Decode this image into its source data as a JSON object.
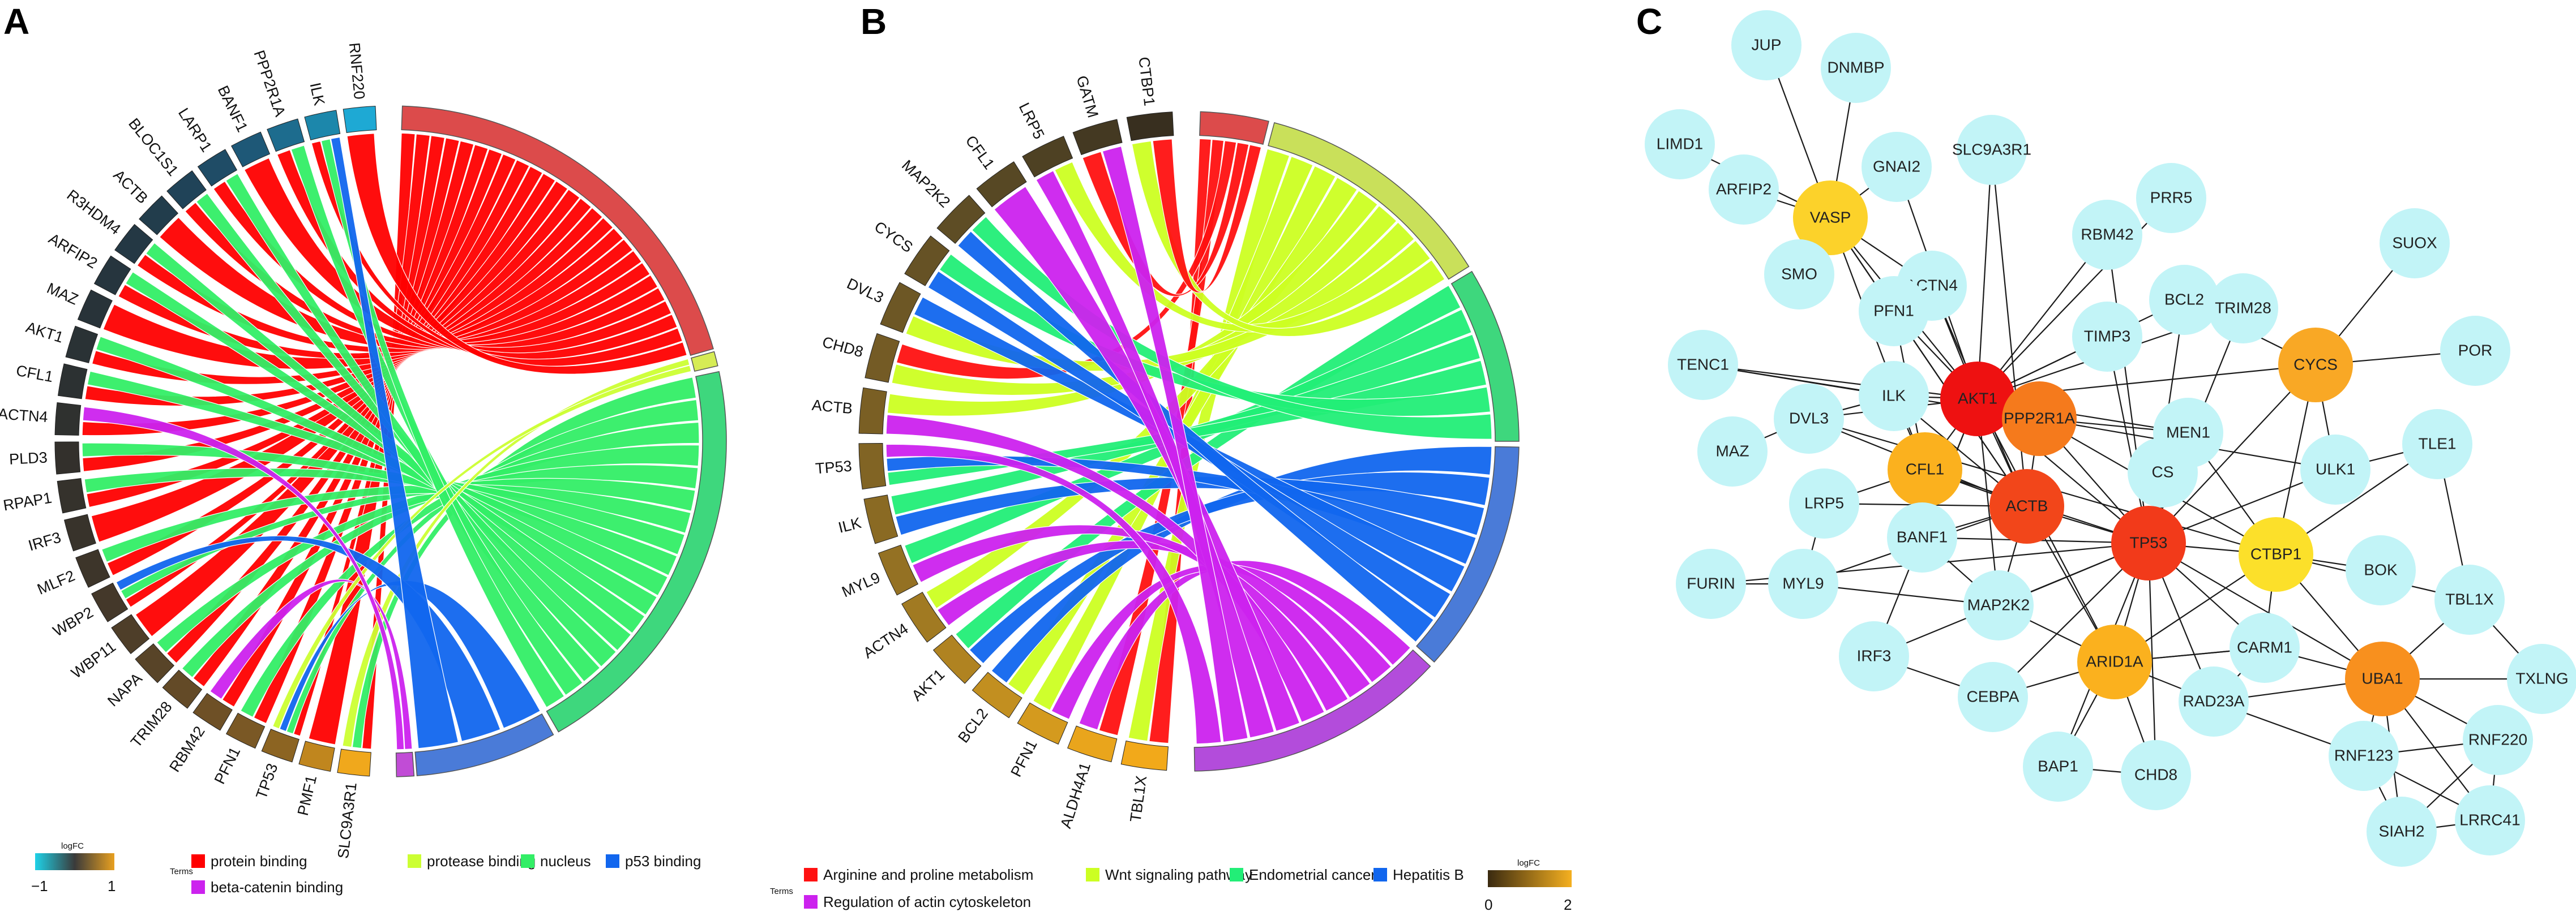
{
  "panels": [
    {
      "letter": "A",
      "genes": [
        "SLC9A3R1",
        "PMF1",
        "TP53",
        "PFN1",
        "RBM42",
        "TRIM28",
        "NAPA",
        "WBP11",
        "WBP2",
        "MLF2",
        "IRF3",
        "RPAP1",
        "PLD3",
        "ACTN4",
        "CFL1",
        "AKT1",
        "MAZ",
        "ARFIP2",
        "R3HDM4",
        "ACTB",
        "BLOC1S1",
        "LARP1",
        "BANF1",
        "PPP2R1A",
        "ILK",
        "RNF220"
      ],
      "gene_colors": [
        "#f0a81c",
        "#c0861e",
        "#8c6422",
        "#7a5825",
        "#6e5026",
        "#634a27",
        "#584428",
        "#4e3e29",
        "#44382a",
        "#3d352a",
        "#38332b",
        "#35322c",
        "#33302c",
        "#2f312f",
        "#2c3132",
        "#2a3235",
        "#283339",
        "#26353e",
        "#243844",
        "#223d4c",
        "#204358",
        "#1f4c66",
        "#1e5877",
        "#1d6c8e",
        "#1c87ab",
        "#1ea9d4"
      ],
      "terms": [
        {
          "name": "protein binding",
          "color": "#ff0000",
          "arc_color": "#dc4b4b"
        },
        {
          "name": "protease binding",
          "color": "#ccff33",
          "arc_color": "#d6ec55"
        },
        {
          "name": "nucleus",
          "color": "#33ee66",
          "arc_color": "#3ed77d"
        },
        {
          "name": "p53 binding",
          "color": "#1166ee",
          "arc_color": "#4a7bd8"
        },
        {
          "name": "beta-catenin binding",
          "color": "#cc22ee",
          "arc_color": "#c14cd6"
        }
      ],
      "legend": {
        "title": "logFC",
        "min_label": "−1",
        "max_label": "1",
        "terms_title": "Terms",
        "gradient": [
          "#1ed2e8",
          "#3a3a3a",
          "#e8a020"
        ]
      }
    },
    {
      "letter": "B",
      "genes": [
        "TBL1X",
        "ALDH4A1",
        "PFN1",
        "BCL2",
        "AKT1",
        "ACTN4",
        "MYL9",
        "ILK",
        "TP53",
        "ACTB",
        "CHD8",
        "DVL3",
        "CYCS",
        "MAP2K2",
        "CFL1",
        "LRP5",
        "GATM",
        "CTBP1"
      ],
      "gene_colors": [
        "#f2a91a",
        "#e9a51c",
        "#d49a1e",
        "#c28f20",
        "#b08321",
        "#a17a22",
        "#947123",
        "#8a6a23",
        "#816424",
        "#7a5f24",
        "#745b25",
        "#6d5725",
        "#665225",
        "#5e4d25",
        "#574824",
        "#4e4123",
        "#443922",
        "#382f1f"
      ],
      "terms": [
        {
          "name": "Arginine and proline metabolism",
          "color": "#ff1111",
          "arc_color": "#dc4b4b"
        },
        {
          "name": "Wnt signaling pathway",
          "color": "#ccff22",
          "arc_color": "#c9e05a"
        },
        {
          "name": "Endometrial cancer",
          "color": "#22ee77",
          "arc_color": "#3ed77d"
        },
        {
          "name": "Hepatitis B",
          "color": "#1166ee",
          "arc_color": "#4a7bd8"
        },
        {
          "name": "Regulation of actin cytoskeleton",
          "color": "#cc22ee",
          "arc_color": "#b34cdb"
        }
      ],
      "legend": {
        "title": "logFC",
        "min_label": "0",
        "max_label": "2",
        "terms_title": "Terms",
        "gradient": [
          "#3a2a10",
          "#f5b020"
        ]
      }
    },
    {
      "letter": "C",
      "nodes": [
        {
          "id": "JUP",
          "color": "#c2f4f7"
        },
        {
          "id": "DNMBP",
          "color": "#c2f4f7"
        },
        {
          "id": "LIMD1",
          "color": "#c2f4f7"
        },
        {
          "id": "ARFIP2",
          "color": "#c2f4f7"
        },
        {
          "id": "VASP",
          "color": "#fcd22a"
        },
        {
          "id": "GNAI2",
          "color": "#c2f4f7"
        },
        {
          "id": "SLC9A3R1",
          "color": "#c2f4f7"
        },
        {
          "id": "PRR5",
          "color": "#c2f4f7"
        },
        {
          "id": "RBM42",
          "color": "#c2f4f7"
        },
        {
          "id": "SMO",
          "color": "#c2f4f7"
        },
        {
          "id": "ACTN4",
          "color": "#c2f4f7"
        },
        {
          "id": "PFN1",
          "color": "#c2f4f7"
        },
        {
          "id": "BCL2",
          "color": "#c2f4f7"
        },
        {
          "id": "TRIM28",
          "color": "#c2f4f7"
        },
        {
          "id": "SUOX",
          "color": "#c2f4f7"
        },
        {
          "id": "TIMP3",
          "color": "#c2f4f7"
        },
        {
          "id": "CYCS",
          "color": "#f9a825"
        },
        {
          "id": "POR",
          "color": "#c2f4f7"
        },
        {
          "id": "TENC1",
          "color": "#c2f4f7"
        },
        {
          "id": "AKT1",
          "color": "#ee1111"
        },
        {
          "id": "PPP2R1A",
          "color": "#f57a1c"
        },
        {
          "id": "ILK",
          "color": "#c2f4f7"
        },
        {
          "id": "DVL3",
          "color": "#c2f4f7"
        },
        {
          "id": "MEN1",
          "color": "#c2f4f7"
        },
        {
          "id": "MAZ",
          "color": "#c2f4f7"
        },
        {
          "id": "CFL1",
          "color": "#fbb11e"
        },
        {
          "id": "ULK1",
          "color": "#c2f4f7"
        },
        {
          "id": "TLE1",
          "color": "#c2f4f7"
        },
        {
          "id": "CS",
          "color": "#c2f4f7"
        },
        {
          "id": "LRP5",
          "color": "#c2f4f7"
        },
        {
          "id": "ACTB",
          "color": "#f2461a"
        },
        {
          "id": "BANF1",
          "color": "#c2f4f7"
        },
        {
          "id": "TP53",
          "color": "#f23a1a"
        },
        {
          "id": "CTBP1",
          "color": "#fce02a"
        },
        {
          "id": "BOK",
          "color": "#c2f4f7"
        },
        {
          "id": "FURIN",
          "color": "#c2f4f7"
        },
        {
          "id": "MYL9",
          "color": "#c2f4f7"
        },
        {
          "id": "MAP2K2",
          "color": "#c2f4f7"
        },
        {
          "id": "TBL1X",
          "color": "#c2f4f7"
        },
        {
          "id": "IRF3",
          "color": "#c2f4f7"
        },
        {
          "id": "CARM1",
          "color": "#c2f4f7"
        },
        {
          "id": "ARID1A",
          "color": "#fbb11e"
        },
        {
          "id": "UBA1",
          "color": "#f8901e"
        },
        {
          "id": "TXLNG",
          "color": "#c2f4f7"
        },
        {
          "id": "CEBPA",
          "color": "#c2f4f7"
        },
        {
          "id": "RAD23A",
          "color": "#c2f4f7"
        },
        {
          "id": "RNF220",
          "color": "#c2f4f7"
        },
        {
          "id": "RNF123",
          "color": "#c2f4f7"
        },
        {
          "id": "BAP1",
          "color": "#c2f4f7"
        },
        {
          "id": "CHD8",
          "color": "#c2f4f7"
        },
        {
          "id": "SIAH2",
          "color": "#c2f4f7"
        },
        {
          "id": "LRRC41",
          "color": "#c2f4f7"
        }
      ],
      "edges": [
        [
          "JUP",
          "VASP"
        ],
        [
          "DNMBP",
          "VASP"
        ],
        [
          "LIMD1",
          "VASP"
        ],
        [
          "ARFIP2",
          "VASP"
        ],
        [
          "GNAI2",
          "VASP"
        ],
        [
          "SMO",
          "VASP"
        ],
        [
          "VASP",
          "ACTN4"
        ],
        [
          "VASP",
          "PFN1"
        ],
        [
          "VASP",
          "AKT1"
        ],
        [
          "VASP",
          "CFL1"
        ],
        [
          "VASP",
          "ACTB"
        ],
        [
          "GNAI2",
          "AKT1"
        ],
        [
          "SLC9A3R1",
          "AKT1"
        ],
        [
          "SLC9A3R1",
          "ACTB"
        ],
        [
          "PRR5",
          "AKT1"
        ],
        [
          "RBM42",
          "AKT1"
        ],
        [
          "RBM42",
          "TP53"
        ],
        [
          "ACTN4",
          "AKT1"
        ],
        [
          "ACTN4",
          "ACTB"
        ],
        [
          "PFN1",
          "ACTB"
        ],
        [
          "PFN1",
          "AKT1"
        ],
        [
          "PFN1",
          "CFL1"
        ],
        [
          "BCL2",
          "AKT1"
        ],
        [
          "BCL2",
          "TP53"
        ],
        [
          "BCL2",
          "CYCS"
        ],
        [
          "TRIM28",
          "TP53"
        ],
        [
          "TRIM28",
          "AKT1"
        ],
        [
          "SUOX",
          "CYCS"
        ],
        [
          "POR",
          "CYCS"
        ],
        [
          "TIMP3",
          "AKT1"
        ],
        [
          "TIMP3",
          "TP53"
        ],
        [
          "CYCS",
          "AKT1"
        ],
        [
          "CYCS",
          "TP53"
        ],
        [
          "CYCS",
          "ULK1"
        ],
        [
          "CYCS",
          "CTBP1"
        ],
        [
          "TENC1",
          "AKT1"
        ],
        [
          "TENC1",
          "PPP2R1A"
        ],
        [
          "AKT1",
          "PPP2R1A"
        ],
        [
          "AKT1",
          "ACTB"
        ],
        [
          "AKT1",
          "TP53"
        ],
        [
          "AKT1",
          "CFL1"
        ],
        [
          "AKT1",
          "ILK"
        ],
        [
          "AKT1",
          "DVL3"
        ],
        [
          "AKT1",
          "MAP2K2"
        ],
        [
          "AKT1",
          "BANF1"
        ],
        [
          "AKT1",
          "ARID1A"
        ],
        [
          "AKT1",
          "IRF3"
        ],
        [
          "AKT1",
          "MEN1"
        ],
        [
          "PPP2R1A",
          "TP53"
        ],
        [
          "PPP2R1A",
          "ACTB"
        ],
        [
          "PPP2R1A",
          "CTBP1"
        ],
        [
          "PPP2R1A",
          "MEN1"
        ],
        [
          "PPP2R1A",
          "ULK1"
        ],
        [
          "ILK",
          "ACTB"
        ],
        [
          "ILK",
          "CFL1"
        ],
        [
          "DVL3",
          "ACTB"
        ],
        [
          "DVL3",
          "CTBP1"
        ],
        [
          "MEN1",
          "TP53"
        ],
        [
          "MEN1",
          "CTBP1"
        ],
        [
          "MAZ",
          "DVL3"
        ],
        [
          "CFL1",
          "ACTB"
        ],
        [
          "CFL1",
          "LRP5"
        ],
        [
          "CFL1",
          "TP53"
        ],
        [
          "ULK1",
          "TLE1"
        ],
        [
          "ULK1",
          "TP53"
        ],
        [
          "TLE1",
          "CTBP1"
        ],
        [
          "TLE1",
          "TBL1X"
        ],
        [
          "CS",
          "TP53"
        ],
        [
          "LRP5",
          "ACTB"
        ],
        [
          "ACTB",
          "TP53"
        ],
        [
          "ACTB",
          "BANF1"
        ],
        [
          "ACTB",
          "MYL9"
        ],
        [
          "ACTB",
          "MAP2K2"
        ],
        [
          "ACTB",
          "ARID1A"
        ],
        [
          "BANF1",
          "TP53"
        ],
        [
          "TP53",
          "CTBP1"
        ],
        [
          "TP53",
          "MAP2K2"
        ],
        [
          "TP53",
          "CARM1"
        ],
        [
          "TP53",
          "ARID1A"
        ],
        [
          "TP53",
          "UBA1"
        ],
        [
          "TP53",
          "RAD23A"
        ],
        [
          "TP53",
          "CEBPA"
        ],
        [
          "TP53",
          "CHD8"
        ],
        [
          "TP53",
          "BAP1"
        ],
        [
          "TP53",
          "IRF3"
        ],
        [
          "TP53",
          "FURIN"
        ],
        [
          "CTBP1",
          "BOK"
        ],
        [
          "CTBP1",
          "TBL1X"
        ],
        [
          "CTBP1",
          "CARM1"
        ],
        [
          "CTBP1",
          "UBA1"
        ],
        [
          "CTBP1",
          "ARID1A"
        ],
        [
          "MYL9",
          "MAP2K2"
        ],
        [
          "MAP2K2",
          "ARID1A"
        ],
        [
          "TBL1X",
          "UBA1"
        ],
        [
          "TBL1X",
          "TXLNG"
        ],
        [
          "IRF3",
          "CEBPA"
        ],
        [
          "CARM1",
          "ARID1A"
        ],
        [
          "CARM1",
          "UBA1"
        ],
        [
          "ARID1A",
          "CEBPA"
        ],
        [
          "ARID1A",
          "RAD23A"
        ],
        [
          "ARID1A",
          "CHD8"
        ],
        [
          "ARID1A",
          "BAP1"
        ],
        [
          "ARID1A",
          "CARM1"
        ],
        [
          "UBA1",
          "TXLNG"
        ],
        [
          "UBA1",
          "RAD23A"
        ],
        [
          "UBA1",
          "RNF123"
        ],
        [
          "UBA1",
          "RNF220"
        ],
        [
          "UBA1",
          "SIAH2"
        ],
        [
          "UBA1",
          "LRRC41"
        ],
        [
          "RAD23A",
          "RNF123"
        ],
        [
          "RNF220",
          "RNF123"
        ],
        [
          "RNF220",
          "SIAH2"
        ],
        [
          "RNF220",
          "LRRC41"
        ],
        [
          "RNF123",
          "SIAH2"
        ],
        [
          "RNF123",
          "LRRC41"
        ],
        [
          "SIAH2",
          "LRRC41"
        ],
        [
          "CHD8",
          "BAP1"
        ],
        [
          "RAD23A",
          "CARM1"
        ],
        [
          "FURIN",
          "MYL9"
        ],
        [
          "MYL9",
          "LRP5"
        ],
        [
          "BANF1",
          "MAP2K2"
        ],
        [
          "ILK",
          "DVL3"
        ],
        [
          "ILK",
          "TENC1"
        ]
      ]
    }
  ]
}
